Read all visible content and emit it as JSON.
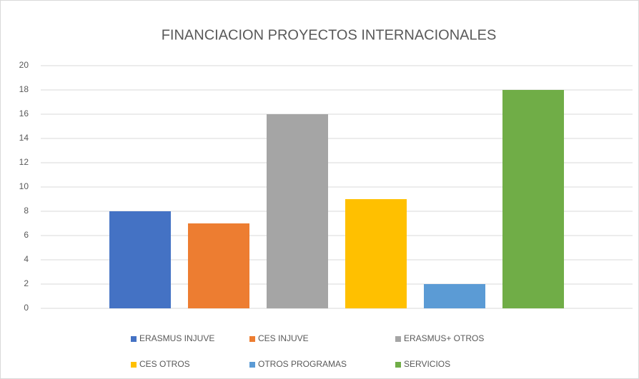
{
  "chart_data": {
    "type": "bar",
    "title": "FINANCIACION PROYECTOS INTERNACIONALES",
    "categories": [
      null
    ],
    "series": [
      {
        "name": "ERASMUS INJUVE",
        "color": "#4472c4",
        "values": [
          8
        ]
      },
      {
        "name": "CES INJUVE",
        "color": "#ed7d31",
        "values": [
          7
        ]
      },
      {
        "name": "ERASMUS+ OTROS",
        "color": "#a5a5a5",
        "values": [
          16
        ]
      },
      {
        "name": "CES OTROS",
        "color": "#ffc000",
        "values": [
          9
        ]
      },
      {
        "name": "OTROS PROGRAMAS",
        "color": "#5b9bd5",
        "values": [
          2
        ]
      },
      {
        "name": "SERVICIOS",
        "color": "#70ad47",
        "values": [
          18
        ]
      }
    ],
    "ylim": [
      0,
      20
    ],
    "yticks": [
      0,
      2,
      4,
      6,
      8,
      10,
      12,
      14,
      16,
      18,
      20
    ],
    "grid": true,
    "legend": "bottom"
  }
}
